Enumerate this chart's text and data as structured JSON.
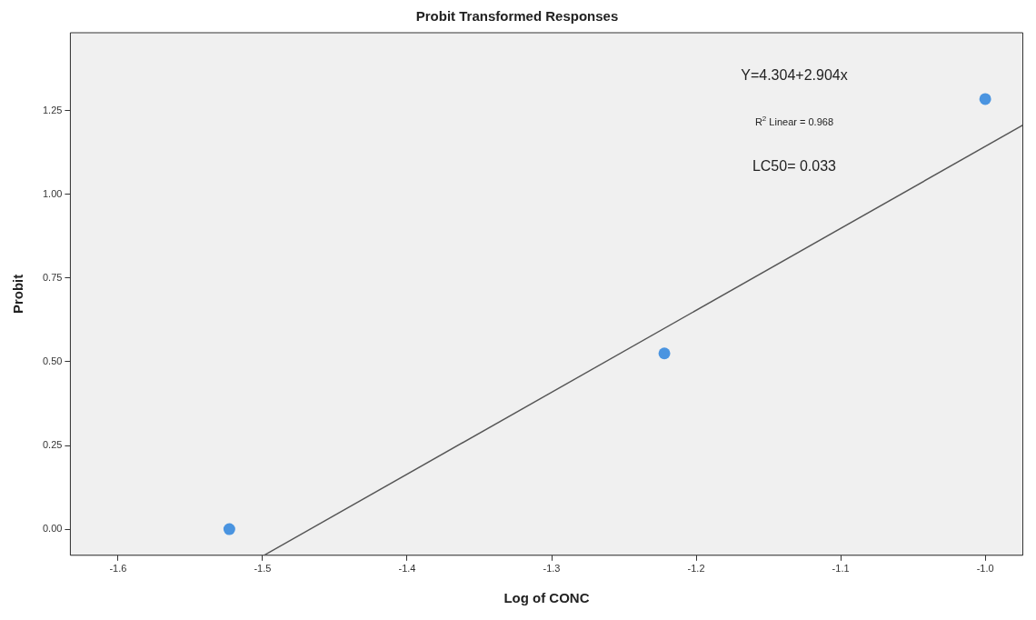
{
  "chart_data": {
    "type": "scatter",
    "title": "Probit Transformed Responses",
    "xlabel": "Log of CONC",
    "ylabel": "Probit",
    "xlim": [
      -1.633,
      -0.974
    ],
    "ylim": [
      -0.078,
      1.483
    ],
    "xticks": [
      {
        "value": -1.6,
        "label": "-1.6"
      },
      {
        "value": -1.5,
        "label": "-1.5"
      },
      {
        "value": -1.4,
        "label": "-1.4"
      },
      {
        "value": -1.3,
        "label": "-1.3"
      },
      {
        "value": -1.2,
        "label": "-1.2"
      },
      {
        "value": -1.1,
        "label": "-1.1"
      },
      {
        "value": -1.0,
        "label": "-1.0"
      }
    ],
    "yticks": [
      {
        "value": 0,
        "label": "0.00"
      },
      {
        "value": 0.25,
        "label": "0.25"
      },
      {
        "value": 0.5,
        "label": "0.50"
      },
      {
        "value": 0.75,
        "label": "0.75"
      },
      {
        "value": 1.0,
        "label": "1.00"
      },
      {
        "value": 1.25,
        "label": "1.25"
      }
    ],
    "marker": "circle",
    "series": [
      {
        "type": "scatter",
        "color": "#4a94e0",
        "x": [
          -1.523,
          -1.222,
          -1.0
        ],
        "values": [
          0.0,
          0.525,
          1.285
        ]
      },
      {
        "type": "line",
        "color": "#555555",
        "marker": "none",
        "x": [
          -1.499,
          -0.974
        ],
        "values": [
          -0.078,
          1.207
        ]
      }
    ],
    "annotations": [
      "Y=4.304+2.904x",
      "R$^{2}$ Linear = 0.968",
      "LC50= 0.033"
    ]
  }
}
